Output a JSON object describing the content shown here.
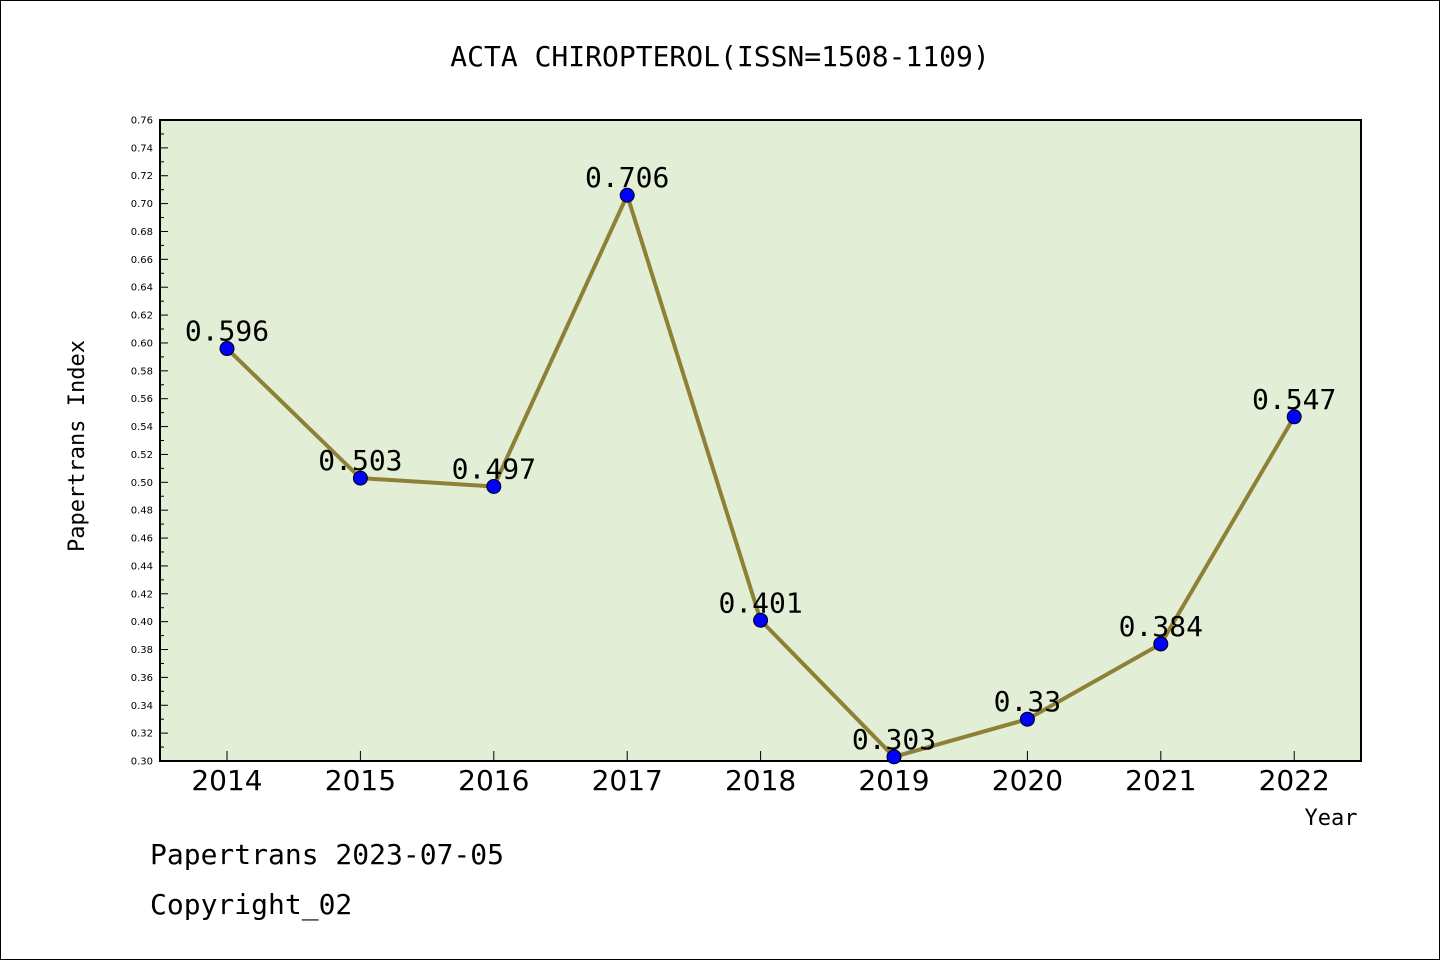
{
  "footer": {
    "line1": "Papertrans 2023-07-05",
    "line2": "Copyright_02"
  },
  "colors": {
    "plot_background": "#e2efd6",
    "line": "#8f8038",
    "marker": "#0000ff"
  },
  "chart_data": {
    "type": "line",
    "title": "ACTA CHIROPTEROL(ISSN=1508-1109)",
    "xlabel": "Year",
    "ylabel": "Papertrans Index",
    "categories": [
      "2014",
      "2015",
      "2016",
      "2017",
      "2018",
      "2019",
      "2020",
      "2021",
      "2022"
    ],
    "series": [
      {
        "values": [
          0.596,
          0.503,
          0.497,
          0.706,
          0.401,
          0.303,
          0.33,
          0.384,
          0.547
        ],
        "labels": [
          "0.596",
          "0.503",
          "0.497",
          "0.706",
          "0.401",
          "0.303",
          "0.33",
          "0.384",
          "0.547"
        ]
      }
    ],
    "ylim": [
      0.3,
      0.76
    ],
    "yticks": [
      "0.30",
      "0.32",
      "0.34",
      "0.36",
      "0.38",
      "0.40",
      "0.42",
      "0.44",
      "0.46",
      "0.48",
      "0.50",
      "0.52",
      "0.54",
      "0.56",
      "0.58",
      "0.60",
      "0.62",
      "0.64",
      "0.66",
      "0.68",
      "0.70",
      "0.72",
      "0.74",
      "0.76"
    ],
    "grid": false,
    "legend": "none"
  }
}
